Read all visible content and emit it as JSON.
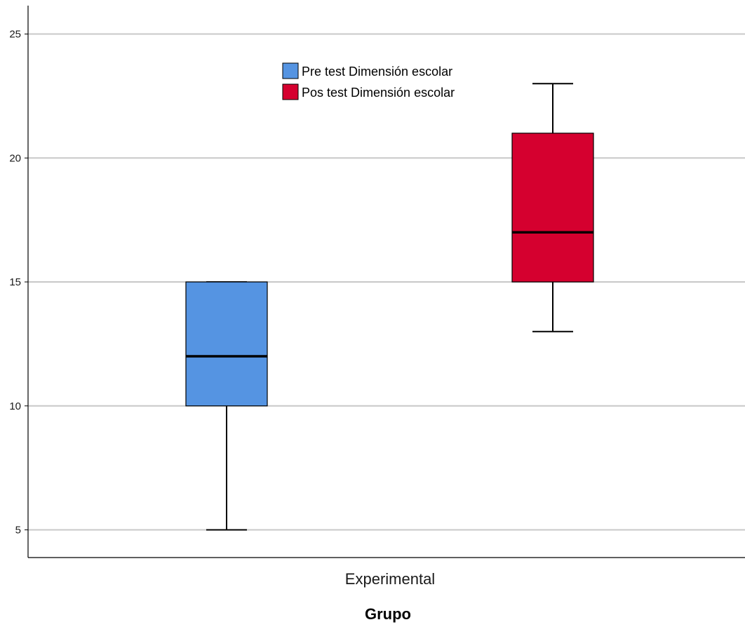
{
  "chart_data": {
    "type": "boxplot",
    "title": "",
    "xlabel": "Grupo",
    "ylabel": "",
    "categories": [
      "Experimental"
    ],
    "ylim": [
      3.9,
      26.3
    ],
    "yticks": [
      5,
      10,
      15,
      20,
      25
    ],
    "grid": true,
    "legend_position": "top-center",
    "series": [
      {
        "name": "Pre test Dimensión escolar",
        "color": "#5594e2",
        "min": 5,
        "q1": 10,
        "median": 12,
        "q3": 15,
        "max": 15
      },
      {
        "name": "Pos test Dimensión escolar",
        "color": "#d5002f",
        "min": 13,
        "q1": 15,
        "median": 17,
        "q3": 21,
        "max": 23
      }
    ]
  }
}
